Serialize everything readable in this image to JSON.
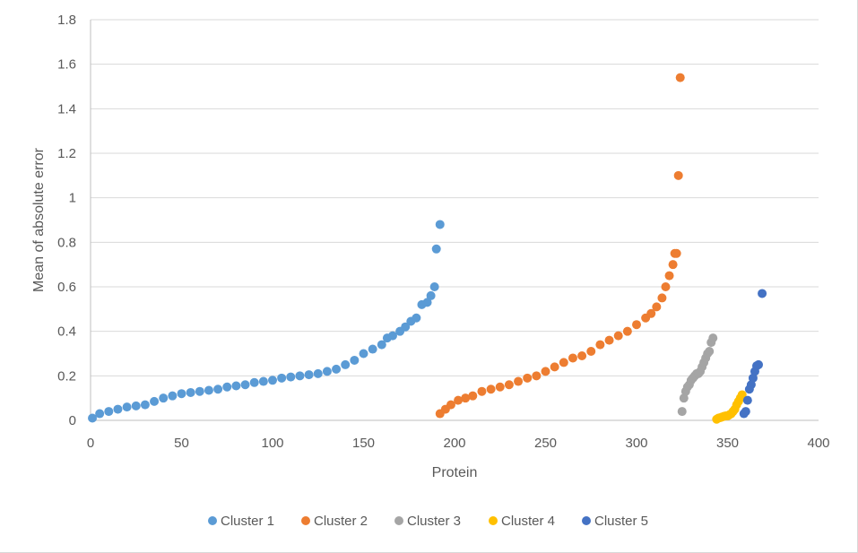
{
  "chart_data": {
    "type": "scatter",
    "title": "",
    "xlabel": "Protein",
    "ylabel": "Mean of absolute error",
    "xlim": [
      0,
      400
    ],
    "ylim": [
      0,
      1.8
    ],
    "x_ticks": [
      "0",
      "50",
      "100",
      "150",
      "200",
      "250",
      "300",
      "350",
      "400"
    ],
    "y_ticks": [
      "0",
      "0.2",
      "0.4",
      "0.6",
      "0.8",
      "1",
      "1.2",
      "1.4",
      "1.6",
      "1.8"
    ],
    "grid": "horizontal",
    "legend_position": "bottom",
    "series": [
      {
        "name": "Cluster 1",
        "color": "#5B9BD5",
        "x": [
          1,
          5,
          10,
          15,
          20,
          25,
          30,
          35,
          40,
          45,
          50,
          55,
          60,
          65,
          70,
          75,
          80,
          85,
          90,
          95,
          100,
          105,
          110,
          115,
          120,
          125,
          130,
          135,
          140,
          145,
          150,
          155,
          160,
          163,
          166,
          170,
          173,
          176,
          179,
          182,
          185,
          187,
          189,
          190,
          192
        ],
        "values": [
          0.01,
          0.03,
          0.04,
          0.05,
          0.06,
          0.065,
          0.07,
          0.085,
          0.1,
          0.11,
          0.12,
          0.125,
          0.13,
          0.135,
          0.14,
          0.15,
          0.155,
          0.16,
          0.17,
          0.175,
          0.18,
          0.19,
          0.195,
          0.2,
          0.205,
          0.21,
          0.22,
          0.23,
          0.25,
          0.27,
          0.3,
          0.32,
          0.34,
          0.37,
          0.38,
          0.4,
          0.42,
          0.445,
          0.46,
          0.52,
          0.53,
          0.56,
          0.6,
          0.77,
          0.88
        ]
      },
      {
        "name": "Cluster 2",
        "color": "#ED7D31",
        "x": [
          192,
          195,
          198,
          202,
          206,
          210,
          215,
          220,
          225,
          230,
          235,
          240,
          245,
          250,
          255,
          260,
          265,
          270,
          275,
          280,
          285,
          290,
          295,
          300,
          305,
          308,
          311,
          314,
          316,
          318,
          320,
          321,
          322,
          323,
          324
        ],
        "values": [
          0.03,
          0.05,
          0.07,
          0.09,
          0.1,
          0.11,
          0.13,
          0.14,
          0.15,
          0.16,
          0.175,
          0.19,
          0.2,
          0.22,
          0.24,
          0.26,
          0.28,
          0.29,
          0.31,
          0.34,
          0.36,
          0.38,
          0.4,
          0.43,
          0.46,
          0.48,
          0.51,
          0.55,
          0.6,
          0.65,
          0.7,
          0.75,
          0.75,
          1.1,
          1.54
        ]
      },
      {
        "name": "Cluster 3",
        "color": "#A5A5A5",
        "x": [
          325,
          326,
          327,
          328,
          329,
          330,
          331,
          332,
          333,
          334,
          335,
          336,
          337,
          338,
          339,
          340,
          341,
          342
        ],
        "values": [
          0.04,
          0.1,
          0.13,
          0.15,
          0.16,
          0.18,
          0.19,
          0.2,
          0.21,
          0.21,
          0.22,
          0.24,
          0.26,
          0.28,
          0.3,
          0.31,
          0.35,
          0.37
        ]
      },
      {
        "name": "Cluster 4",
        "color": "#FFC000",
        "x": [
          344,
          345,
          346,
          347,
          348,
          349,
          350,
          351,
          352,
          353,
          354,
          355,
          356,
          357,
          358
        ],
        "values": [
          0.005,
          0.01,
          0.012,
          0.015,
          0.018,
          0.02,
          0.02,
          0.025,
          0.03,
          0.04,
          0.05,
          0.07,
          0.085,
          0.1,
          0.115
        ]
      },
      {
        "name": "Cluster 5",
        "color": "#4472C4",
        "x": [
          359,
          360,
          361,
          362,
          363,
          364,
          365,
          366,
          367,
          369
        ],
        "values": [
          0.03,
          0.04,
          0.09,
          0.14,
          0.16,
          0.19,
          0.22,
          0.245,
          0.25,
          0.57
        ]
      }
    ]
  }
}
